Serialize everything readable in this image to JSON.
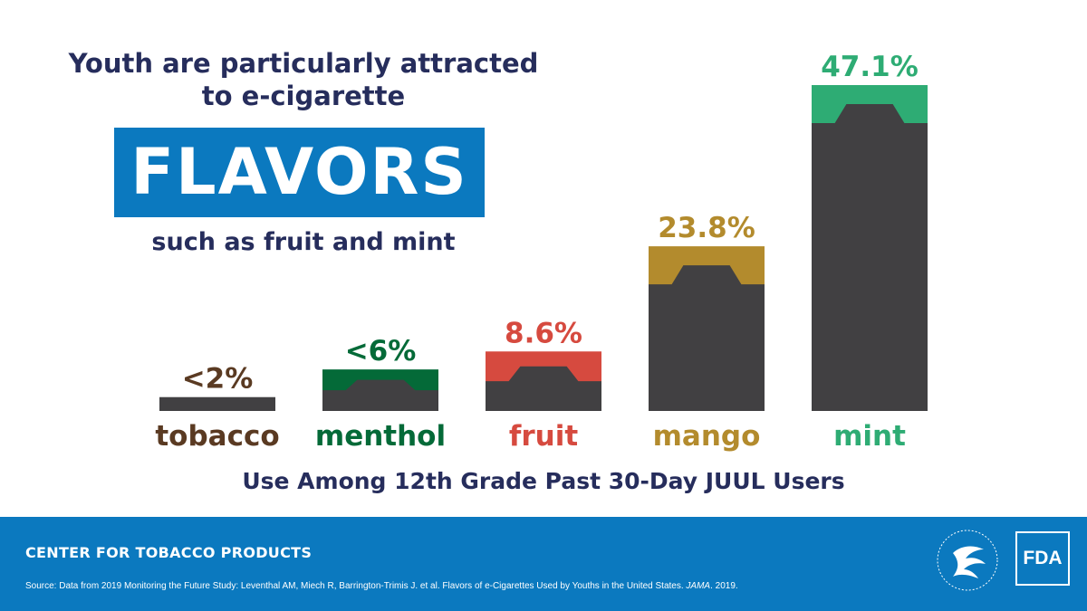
{
  "headline": {
    "line1": "Youth are particularly attracted",
    "line2": "to e-cigarette",
    "highlight": "FLAVORS",
    "subline": "such as fruit and mint"
  },
  "colors": {
    "navy": "#262d5c",
    "accent_blue": "#0b79bf",
    "bar_dark": "#414042",
    "tobacco": "#5a3a22",
    "menthol": "#046a38",
    "fruit": "#d64a3f",
    "mango": "#b38b2d",
    "mint": "#2eac74"
  },
  "chart_data": {
    "type": "bar",
    "title": "Youth are particularly attracted to e-cigarette FLAVORS such as fruit and mint",
    "xlabel": "Use Among 12th Grade Past 30-Day JUUL Users",
    "ylabel": "",
    "ylim": [
      0,
      47.1
    ],
    "grid": false,
    "categories": [
      "tobacco",
      "menthol",
      "fruit",
      "mango",
      "mint"
    ],
    "values": [
      2,
      6,
      8.6,
      23.8,
      47.1
    ],
    "data_labels": [
      "<2%",
      "<6%",
      "8.6%",
      "23.8%",
      "47.1%"
    ],
    "series_colors": [
      "#5a3a22",
      "#046a38",
      "#d64a3f",
      "#b38b2d",
      "#2eac74"
    ]
  },
  "footer": {
    "org": "CENTER FOR TOBACCO PRODUCTS",
    "source_prefix": "Source: Data from 2019 Monitoring the Future Study: Leventhal AM, Miech R, Barrington-Trimis J. et al. Flavors of e-Cigarettes Used by Youths in the United States.",
    "source_journal": "JAMA",
    "source_suffix": ". 2019.",
    "hhs_seal_icon": "hhs-eagle-seal",
    "fda_logo_text": "FDA"
  }
}
